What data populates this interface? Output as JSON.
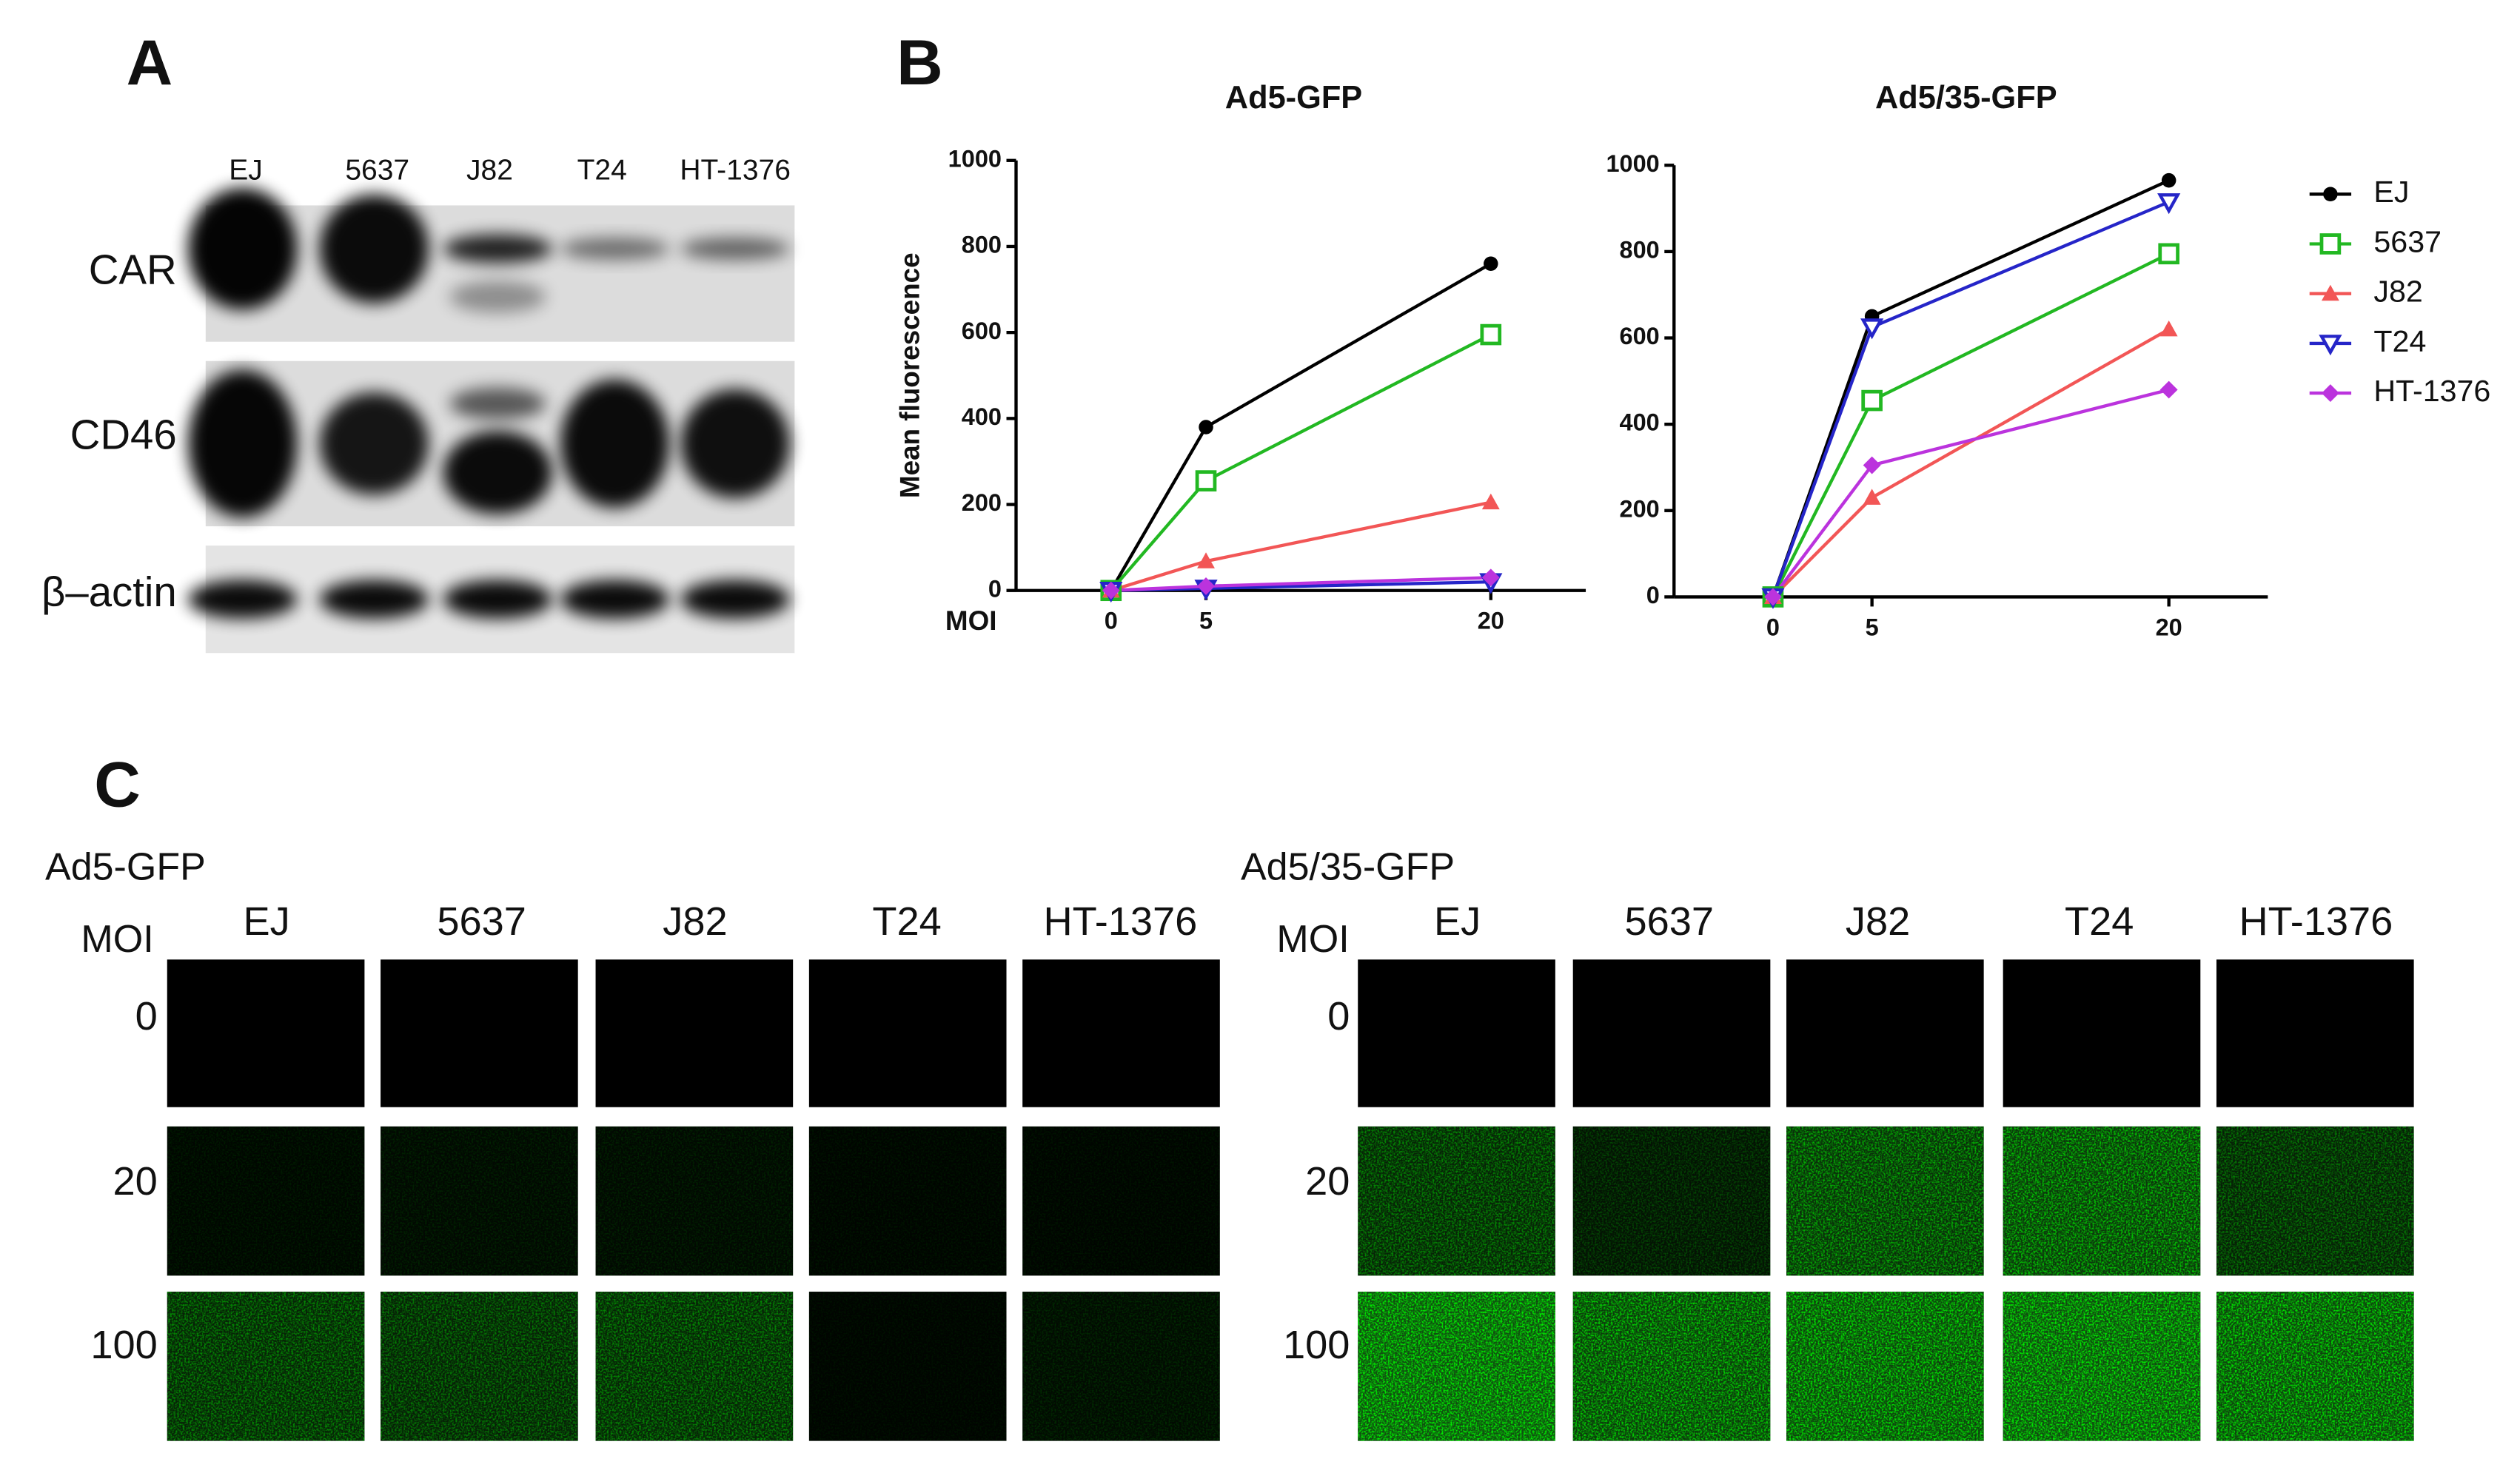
{
  "panel_labels": [
    "A",
    "B",
    "C"
  ],
  "western_blot": {
    "lanes": [
      "EJ",
      "5637",
      "J82",
      "T24",
      "HT-1376"
    ],
    "rows": [
      "CAR",
      "CD46",
      "β–actin"
    ]
  },
  "chart_data": [
    {
      "type": "line",
      "title": "Ad5-GFP",
      "y_label": "Mean fluorescence",
      "x_label": "MOI",
      "x": [
        0,
        5,
        20
      ],
      "xlim": [
        -5,
        25
      ],
      "xticks": [
        0,
        5,
        20
      ],
      "ylim": [
        0,
        1000
      ],
      "yticks": [
        0,
        200,
        400,
        600,
        800,
        1000
      ],
      "series": [
        {
          "name": "EJ",
          "color": "#000000",
          "marker": "circle",
          "values": [
            0,
            380,
            760
          ]
        },
        {
          "name": "5637",
          "color": "#22b822",
          "marker": "square-open",
          "values": [
            0,
            255,
            595
          ]
        },
        {
          "name": "J82",
          "color": "#f25656",
          "marker": "triangle",
          "values": [
            0,
            68,
            205
          ]
        },
        {
          "name": "T24",
          "color": "#2525c8",
          "marker": "triangle-down-open",
          "values": [
            0,
            5,
            20
          ]
        },
        {
          "name": "HT-1376",
          "color": "#bb33dd",
          "marker": "diamond",
          "values": [
            0,
            10,
            30
          ]
        }
      ]
    },
    {
      "type": "line",
      "title": "Ad5/35-GFP",
      "x": [
        0,
        5,
        20
      ],
      "xlim": [
        -5,
        25
      ],
      "xticks": [
        0,
        5,
        20
      ],
      "ylim": [
        0,
        1000
      ],
      "yticks": [
        0,
        200,
        400,
        600,
        800,
        1000
      ],
      "legend": "right",
      "series": [
        {
          "name": "EJ",
          "color": "#000000",
          "marker": "circle",
          "values": [
            0,
            650,
            965
          ]
        },
        {
          "name": "5637",
          "color": "#22b822",
          "marker": "square-open",
          "values": [
            0,
            455,
            795
          ]
        },
        {
          "name": "J82",
          "color": "#f25656",
          "marker": "triangle",
          "values": [
            0,
            230,
            620
          ]
        },
        {
          "name": "T24",
          "color": "#2525c8",
          "marker": "triangle-down-open",
          "values": [
            0,
            625,
            915
          ]
        },
        {
          "name": "HT-1376",
          "color": "#bb33dd",
          "marker": "diamond",
          "values": [
            0,
            305,
            480
          ]
        }
      ]
    }
  ],
  "micrographs": {
    "groups": [
      {
        "title": "Ad5-GFP",
        "row_header": "MOI",
        "columns": [
          "EJ",
          "5637",
          "J82",
          "T24",
          "HT-1376"
        ],
        "rows": [
          "0",
          "20",
          "100"
        ]
      },
      {
        "title": "Ad5/35-GFP",
        "row_header": "MOI",
        "columns": [
          "EJ",
          "5637",
          "J82",
          "T24",
          "HT-1376"
        ],
        "rows": [
          "0",
          "20",
          "100"
        ]
      }
    ]
  }
}
